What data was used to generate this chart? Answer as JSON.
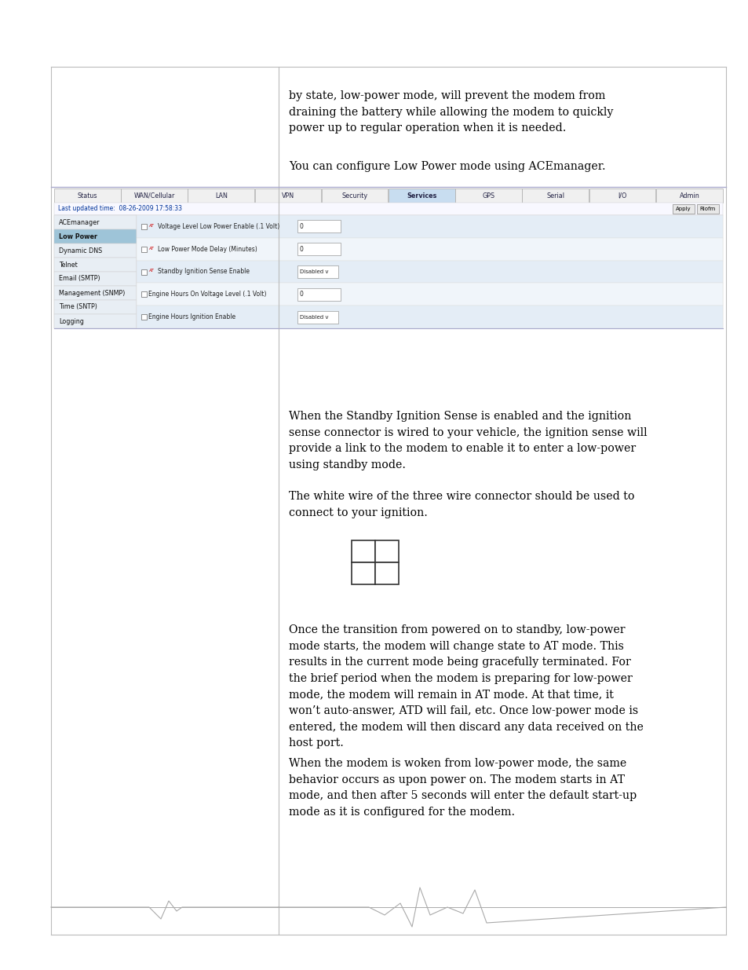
{
  "bg_color": "#ffffff",
  "para1": "by state, low-power mode, will prevent the modem from\ndraining the battery while allowing the modem to quickly\npower up to regular operation when it is needed.",
  "para2": "You can configure Low Power mode using ACEmanager.",
  "para3": "When the Standby Ignition Sense is enabled and the ignition\nsense connector is wired to your vehicle, the ignition sense will\nprovide a link to the modem to enable it to enter a low-power\nusing standby mode.",
  "para3b": "The white wire of the three wire connector should be used to\nconnect to your ignition.",
  "para4": "Once the transition from powered on to standby, low-power\nmode starts, the modem will change state to AT mode. This\nresults in the current mode being gracefully terminated. For\nthe brief period when the modem is preparing for low-power\nmode, the modem will remain in AT mode. At that time, it\nwon’t auto-answer, ATD will fail, etc. Once low-power mode is\nentered, the modem will then discard any data received on the\nhost port.",
  "para5": "When the modem is woken from low-power mode, the same\nbehavior occurs as upon power on. The modem starts in AT\nmode, and then after 5 seconds will enter the default start-up\nmode as it is configured for the modem.",
  "screenshot": {
    "tabs": [
      "Status",
      "WAN/Cellular",
      "LAN",
      "VPN",
      "Security",
      "Services",
      "GPS",
      "Serial",
      "I/O",
      "Admin"
    ],
    "active_tab": "Services",
    "last_updated": "Last updated time:  08-26-2009 17:58:33",
    "left_menu": [
      "ACEmanager",
      "Low Power",
      "Dynamic DNS",
      "Telnet",
      "Email (SMTP)",
      "Management (SNMP)",
      "Time (SNTP)",
      "Logging"
    ],
    "active_menu": "Low Power",
    "rows": [
      {
        "label": "Voltage Level Low Power Enable (.1 Volt)",
        "at": true,
        "type": "text",
        "value": "0"
      },
      {
        "label": "Low Power Mode Delay (Minutes)",
        "at": true,
        "type": "text",
        "value": "0"
      },
      {
        "label": "Standby Ignition Sense Enable",
        "at": true,
        "type": "dropdown",
        "value": "Disabled"
      },
      {
        "label": "Engine Hours On Voltage Level (.1 Volt)",
        "at": false,
        "type": "text",
        "value": "0"
      },
      {
        "label": "Engine Hours Ignition Enable",
        "at": false,
        "type": "dropdown",
        "value": "Disabled"
      }
    ]
  }
}
